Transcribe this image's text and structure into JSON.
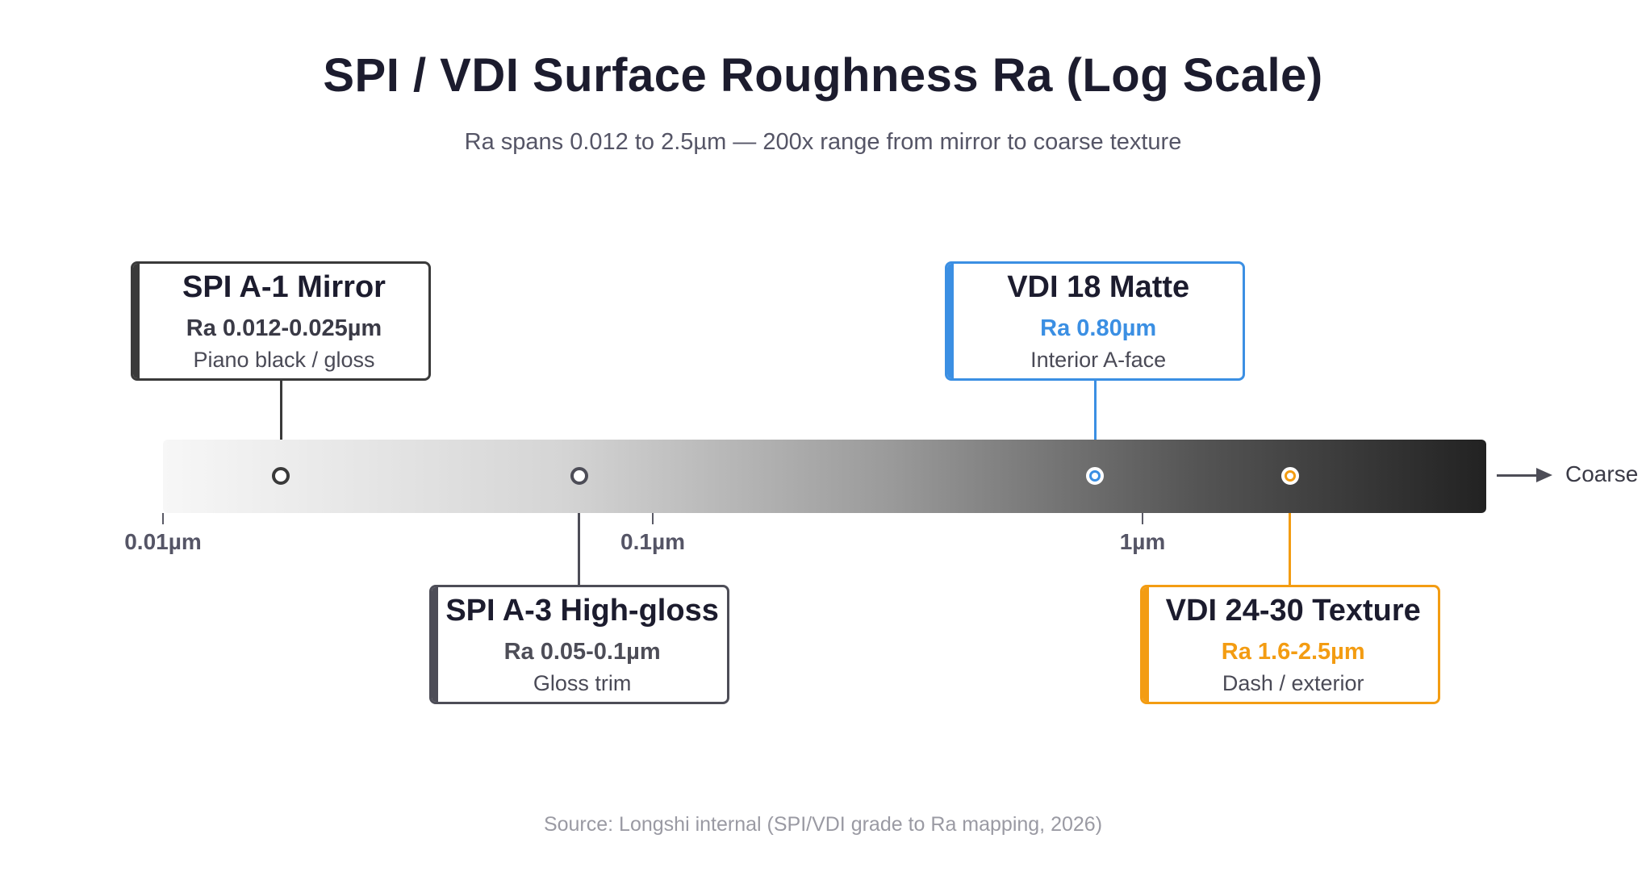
{
  "header": {
    "title": "SPI / VDI Surface Roughness Ra (Log Scale)",
    "subtitle": "Ra spans 0.012 to 2.5µm — 200x range from mirror to coarse texture"
  },
  "axis": {
    "scale": "log",
    "range_um": [
      0.01,
      3.5
    ],
    "ticks": [
      {
        "value": 0.01,
        "label": "0.01µm"
      },
      {
        "value": 0.1,
        "label": "0.1µm"
      },
      {
        "value": 1,
        "label": "1µm"
      }
    ],
    "end_label": "Coarse"
  },
  "grades": [
    {
      "title": "SPI A-1 Mirror",
      "ra": "Ra 0.012-0.025µm",
      "desc": "Piano black / gloss",
      "marker_um": 0.0174,
      "accent": "#3a3a3a",
      "ra_color": "#3a3a46",
      "border": "#3a3a3a",
      "placement": "above"
    },
    {
      "title": "SPI A-3 High-gloss",
      "ra": "Ra 0.05-0.1µm",
      "desc": "Gloss trim",
      "marker_um": 0.0707,
      "accent": "#4d4d57",
      "ra_color": "#4d4d57",
      "border": "#4d4d57",
      "placement": "below"
    },
    {
      "title": "VDI 18 Matte",
      "ra": "Ra 0.80µm",
      "desc": "Interior A-face",
      "marker_um": 0.8,
      "accent": "#3b8fe3",
      "ra_color": "#3b8fe3",
      "border": "#3b8fe3",
      "placement": "above"
    },
    {
      "title": "VDI 24-30 Texture",
      "ra": "Ra 1.6-2.5µm",
      "desc": "Dash / exterior",
      "marker_um": 2.0,
      "accent": "#f39c12",
      "ra_color": "#f39c12",
      "border": "#f39c12",
      "placement": "below"
    }
  ],
  "footer": {
    "source": "Source: Longshi internal (SPI/VDI grade to Ra mapping, 2026)"
  }
}
